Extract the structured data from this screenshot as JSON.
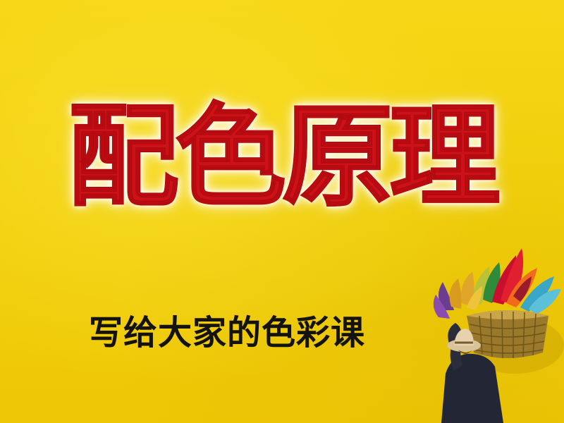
{
  "cover": {
    "title": "配色原理",
    "subtitle": "写给大家的色彩课",
    "background_color": "#f3d10c",
    "title_color": "#cc1118",
    "subtitle_color": "#151310"
  }
}
